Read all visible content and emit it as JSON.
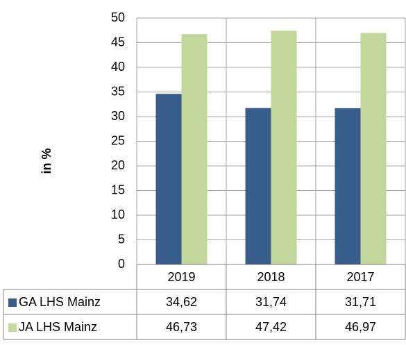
{
  "chart_data": {
    "type": "bar",
    "y_label": "in %",
    "categories": [
      "2019",
      "2018",
      "2017"
    ],
    "series": [
      {
        "name": "GA LHS Mainz",
        "color": "#385d8a",
        "values": [
          34.62,
          31.74,
          31.71
        ],
        "value_labels": [
          "34,62",
          "31,74",
          "31,71"
        ]
      },
      {
        "name": "JA LHS Mainz",
        "color": "#c3d69b",
        "values": [
          46.73,
          47.42,
          46.97
        ],
        "value_labels": [
          "46,73",
          "47,42",
          "46,97"
        ]
      }
    ],
    "ylim": [
      0,
      50
    ],
    "yticks": [
      0,
      5,
      10,
      15,
      20,
      25,
      30,
      35,
      40,
      45,
      50
    ],
    "grid": true
  }
}
